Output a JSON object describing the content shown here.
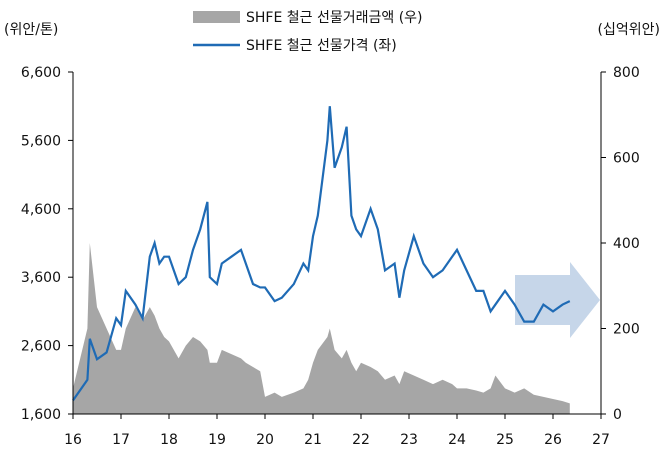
{
  "chart_data": {
    "type": "line",
    "y_label": "(위안/톤)",
    "y2_label": "(십억위안)",
    "x": [
      16.0,
      16.3,
      16.35,
      16.5,
      16.7,
      16.9,
      17.0,
      17.1,
      17.3,
      17.45,
      17.6,
      17.7,
      17.8,
      17.9,
      18.0,
      18.1,
      18.2,
      18.35,
      18.5,
      18.65,
      18.8,
      18.85,
      19.0,
      19.1,
      19.3,
      19.5,
      19.6,
      19.75,
      19.9,
      20.0,
      20.2,
      20.35,
      20.6,
      20.8,
      20.9,
      21.0,
      21.1,
      21.3,
      21.35,
      21.45,
      21.6,
      21.7,
      21.8,
      21.9,
      22.0,
      22.2,
      22.35,
      22.5,
      22.7,
      22.8,
      22.9,
      23.1,
      23.3,
      23.5,
      23.7,
      23.9,
      24.0,
      24.2,
      24.4,
      24.55,
      24.7,
      24.8,
      25.0,
      25.2,
      25.4,
      25.6,
      25.8,
      26.0,
      26.2,
      26.35
    ],
    "series": [
      {
        "name": "SHFE 철근 선물거래금액 (우)",
        "color": "#a6a6a6",
        "kind": "area",
        "axis": "y2",
        "values": [
          60,
          200,
          400,
          250,
          200,
          150,
          150,
          200,
          250,
          220,
          250,
          230,
          200,
          180,
          170,
          150,
          130,
          160,
          180,
          170,
          150,
          120,
          120,
          150,
          140,
          130,
          120,
          110,
          100,
          40,
          50,
          40,
          50,
          60,
          80,
          120,
          150,
          180,
          200,
          150,
          130,
          150,
          120,
          100,
          120,
          110,
          100,
          80,
          90,
          70,
          100,
          90,
          80,
          70,
          80,
          70,
          60,
          60,
          55,
          50,
          60,
          90,
          60,
          50,
          60,
          45,
          40,
          35,
          30,
          25
        ]
      },
      {
        "name": "SHFE 철근 선물가격 (좌)",
        "color": "#1f6bb5",
        "kind": "line",
        "values": [
          1800,
          2100,
          2700,
          2400,
          2500,
          3000,
          2900,
          3400,
          3200,
          3000,
          3900,
          4100,
          3800,
          3900,
          3900,
          3700,
          3500,
          3600,
          4000,
          4300,
          4700,
          3600,
          3500,
          3800,
          3900,
          4000,
          3800,
          3500,
          3450,
          3450,
          3250,
          3300,
          3500,
          3800,
          3700,
          4200,
          4500,
          5600,
          6100,
          5200,
          5500,
          5800,
          4500,
          4300,
          4200,
          4600,
          4300,
          3700,
          3800,
          3300,
          3700,
          4200,
          3800,
          3600,
          3700,
          3900,
          4000,
          3700,
          3400,
          3400,
          3100,
          3200,
          3400,
          3200,
          2950,
          2950,
          3200,
          3100,
          3200,
          3250
        ]
      }
    ],
    "xlim": [
      16,
      27
    ],
    "xticks": [
      16,
      17,
      18,
      19,
      20,
      21,
      22,
      23,
      24,
      25,
      26,
      27
    ],
    "ylim": [
      1600,
      6600
    ],
    "yticks": [
      {
        "value": 1600,
        "label": "1,600"
      },
      {
        "value": 2600,
        "label": "2,600"
      },
      {
        "value": 3600,
        "label": "3,600"
      },
      {
        "value": 4600,
        "label": "4,600"
      },
      {
        "value": 5600,
        "label": "5,600"
      },
      {
        "value": 6600,
        "label": "6,600"
      }
    ],
    "y2lim": [
      0,
      800
    ],
    "y2ticks": [
      0,
      200,
      400,
      600,
      800
    ]
  }
}
